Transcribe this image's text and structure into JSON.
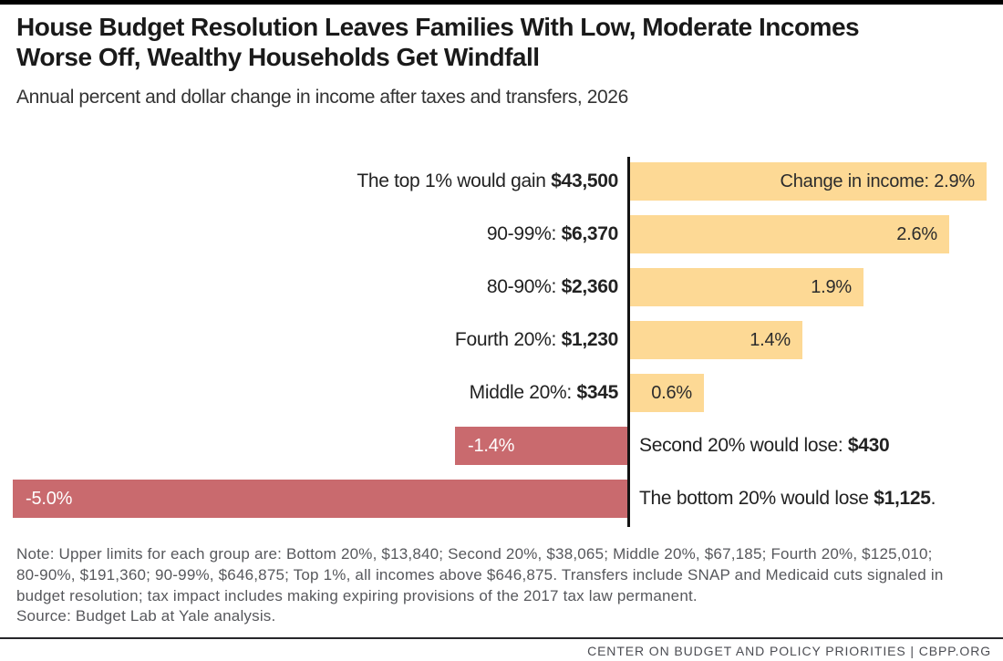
{
  "header": {
    "title": "House Budget Resolution Leaves Families With Low, Moderate Incomes Worse Off, Wealthy Households Get Windfall",
    "title_lines": [
      "House Budget Resolution Leaves Families With Low, Moderate Incomes",
      "Worse Off, Wealthy Households Get Windfall"
    ],
    "subtitle": "Annual percent and dollar change in income after taxes and transfers, 2026"
  },
  "chart_data": {
    "type": "bar",
    "orientation": "horizontal",
    "title": "House Budget Resolution Leaves Families With Low, Moderate Incomes Worse Off, Wealthy Households Get Windfall",
    "subtitle": "Annual percent and dollar change in income after taxes and transfers, 2026",
    "value_unit": "percent change in income after taxes and transfers",
    "xlim": [
      -5.0,
      2.9
    ],
    "grid": false,
    "legend": "none",
    "categories": [
      "Top 1%",
      "90-99%",
      "80-90%",
      "Fourth 20%",
      "Middle 20%",
      "Second 20%",
      "Bottom 20%"
    ],
    "values": [
      2.9,
      2.6,
      1.9,
      1.4,
      0.6,
      -1.4,
      -5.0
    ],
    "dollar_changes": [
      43500,
      6370,
      2360,
      1230,
      345,
      -430,
      -1125
    ],
    "rows": [
      {
        "slug": "top-1pct",
        "category": "Top 1%",
        "pct": 2.9,
        "dollar": 43500,
        "label_prefix": "The top 1% would gain ",
        "label_amount": "$43,500",
        "label_suffix": "",
        "bar_label": "Change in income: 2.9%"
      },
      {
        "slug": "90-99pct",
        "category": "90-99%",
        "pct": 2.6,
        "dollar": 6370,
        "label_prefix": "90-99%: ",
        "label_amount": "$6,370",
        "label_suffix": "",
        "bar_label": "2.6%"
      },
      {
        "slug": "80-90pct",
        "category": "80-90%",
        "pct": 1.9,
        "dollar": 2360,
        "label_prefix": "80-90%: ",
        "label_amount": "$2,360",
        "label_suffix": "",
        "bar_label": "1.9%"
      },
      {
        "slug": "fourth-20pct",
        "category": "Fourth 20%",
        "pct": 1.4,
        "dollar": 1230,
        "label_prefix": "Fourth 20%: ",
        "label_amount": "$1,230",
        "label_suffix": "",
        "bar_label": "1.4%"
      },
      {
        "slug": "middle-20pct",
        "category": "Middle 20%",
        "pct": 0.6,
        "dollar": 345,
        "label_prefix": "Middle 20%: ",
        "label_amount": "$345",
        "label_suffix": "",
        "bar_label": "0.6%"
      },
      {
        "slug": "second-20pct",
        "category": "Second 20%",
        "pct": -1.4,
        "dollar": -430,
        "label_prefix": "Second 20% would lose: ",
        "label_amount": "$430",
        "label_suffix": "",
        "bar_label": "-1.4%"
      },
      {
        "slug": "bottom-20pct",
        "category": "Bottom 20%",
        "pct": -5.0,
        "dollar": -1125,
        "label_prefix": "The bottom 20% would lose ",
        "label_amount": "$1,125",
        "label_suffix": ".",
        "bar_label": "-5.0%"
      }
    ],
    "colors": {
      "positive_bar": "#FDD995",
      "negative_bar": "#C96A6E",
      "axis_line": "#131313",
      "bar_text_positive": "#2b2b2c",
      "bar_text_negative": "#ffffff"
    }
  },
  "notes": {
    "lines": [
      "Note: Upper limits for each group are: Bottom 20%, $13,840; Second 20%, $38,065; Middle 20%, $67,185; Fourth 20%, $125,010;",
      "80-90%, $191,360; 90-99%, $646,875; Top 1%, all incomes above $646,875. Transfers include SNAP and Medicaid cuts signaled in",
      "budget resolution; tax impact includes making expiring provisions of the 2017 tax law permanent."
    ],
    "source": "Source: Budget Lab at Yale analysis."
  },
  "footer": {
    "text": "CENTER ON BUDGET AND POLICY PRIORITIES | CBPP.ORG"
  }
}
